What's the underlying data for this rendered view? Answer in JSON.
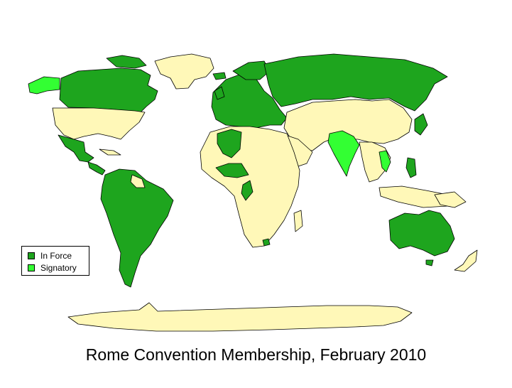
{
  "title": "Rome Convention Membership, February 2010",
  "colors": {
    "in_force": "#1ea51e",
    "signatory": "#33ff33",
    "non_member": "#fff8b8",
    "border": "#000000",
    "background": "#ffffff"
  },
  "legend": {
    "items": [
      {
        "label": "In Force",
        "color": "#1ea51e"
      },
      {
        "label": "Signatory",
        "color": "#33ff33"
      }
    ]
  }
}
